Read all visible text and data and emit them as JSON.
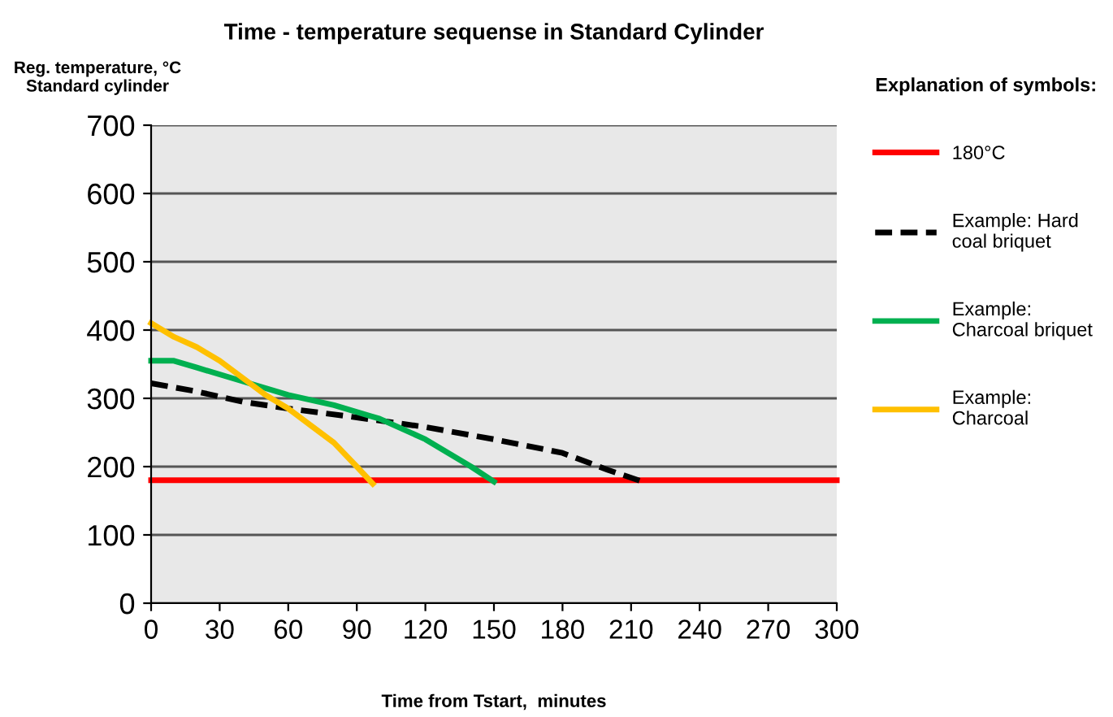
{
  "chart_data": {
    "type": "line",
    "title": "Time - temperature sequense in Standard Cylinder",
    "xlabel": "Time from Tstart,  minutes",
    "ylabel": "Reg. temperature, °C\nStandard cylinder",
    "legend_title": "Explanation of symbols:",
    "series": [
      {
        "name": "180°C",
        "color": "#ff0000",
        "line_style": "solid",
        "x": [
          0,
          300
        ],
        "values": [
          180,
          180
        ]
      },
      {
        "name": "Example: Hard\ncoal briquet",
        "color": "#000000",
        "line_style": "dashed",
        "x": [
          0,
          20,
          40,
          60,
          90,
          120,
          150,
          180,
          200,
          215
        ],
        "values": [
          322,
          310,
          295,
          285,
          272,
          258,
          240,
          220,
          195,
          178
        ]
      },
      {
        "name": "Example:\nCharcoal briquet",
        "color": "#00b050",
        "line_style": "solid",
        "x": [
          0,
          10,
          20,
          40,
          60,
          80,
          100,
          120,
          140,
          150
        ],
        "values": [
          355,
          355,
          345,
          325,
          305,
          290,
          270,
          240,
          200,
          178
        ]
      },
      {
        "name": "Example:\nCharcoal",
        "color": "#ffc000",
        "line_style": "solid",
        "x": [
          0,
          10,
          20,
          30,
          40,
          50,
          60,
          70,
          80,
          90,
          97
        ],
        "values": [
          410,
          390,
          375,
          355,
          330,
          305,
          285,
          260,
          235,
          200,
          175
        ]
      }
    ],
    "xlim": [
      0,
      300
    ],
    "xticks": [
      0,
      30,
      60,
      90,
      120,
      150,
      180,
      210,
      240,
      270,
      300
    ],
    "ylim": [
      0,
      700
    ],
    "yticks": [
      0,
      100,
      200,
      300,
      400,
      500,
      600,
      700
    ],
    "grid": "y",
    "legend": "right",
    "marker": "none"
  }
}
